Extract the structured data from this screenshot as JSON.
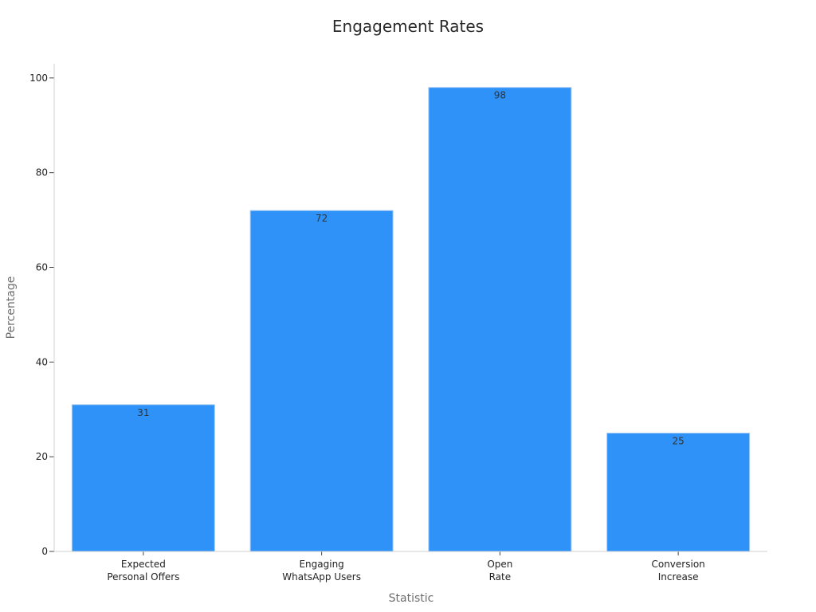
{
  "chart_data": {
    "type": "bar",
    "title": "Engagement Rates",
    "xlabel": "Statistic",
    "ylabel": "Percentage",
    "categories": [
      [
        "Expected",
        "Personal Offers"
      ],
      [
        "Engaging",
        "WhatsApp Users"
      ],
      [
        "Open",
        "Rate"
      ],
      [
        "Conversion",
        "Increase"
      ]
    ],
    "values": [
      31,
      72,
      98,
      25
    ],
    "ylim": [
      0,
      103
    ],
    "yticks": [
      0,
      20,
      40,
      60,
      80,
      100
    ],
    "bar_color": "#2f92f8",
    "bar_edge_color": "#a9cdf3",
    "grid": false,
    "legend": "none"
  }
}
